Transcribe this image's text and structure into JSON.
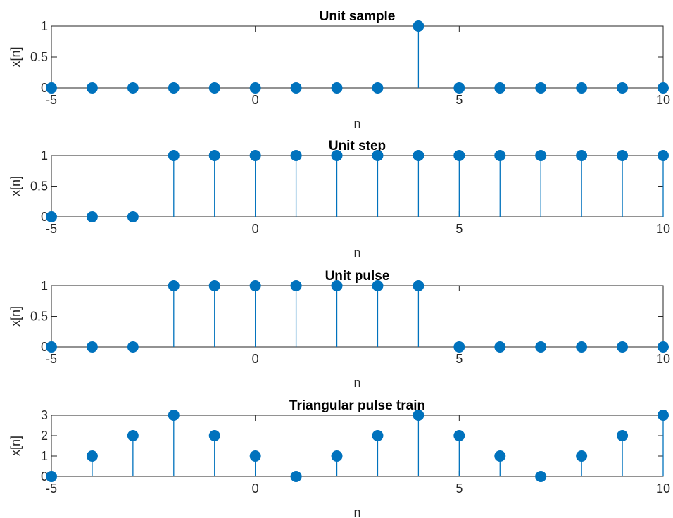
{
  "figure": {
    "stem_color": "#0072BD",
    "axis_color": "#262626",
    "background": "#ffffff"
  },
  "chart_data": [
    {
      "type": "stem",
      "title": "Unit sample",
      "xlabel": "n",
      "ylabel": "x[n]",
      "xlim": [
        -5,
        10
      ],
      "ylim": [
        0,
        1
      ],
      "xticks": [
        "-5",
        "0",
        "5",
        "10"
      ],
      "yticks": [
        "0",
        "0.5",
        "1"
      ],
      "x": [
        -5,
        -4,
        -3,
        -2,
        -1,
        0,
        1,
        2,
        3,
        4,
        5,
        6,
        7,
        8,
        9,
        10
      ],
      "values": [
        0,
        0,
        0,
        0,
        0,
        0,
        0,
        0,
        0,
        1,
        0,
        0,
        0,
        0,
        0,
        0
      ]
    },
    {
      "type": "stem",
      "title": "Unit step",
      "xlabel": "n",
      "ylabel": "x[n]",
      "xlim": [
        -5,
        10
      ],
      "ylim": [
        0,
        1
      ],
      "xticks": [
        "-5",
        "0",
        "5",
        "10"
      ],
      "yticks": [
        "0",
        "0.5",
        "1"
      ],
      "x": [
        -5,
        -4,
        -3,
        -2,
        -1,
        0,
        1,
        2,
        3,
        4,
        5,
        6,
        7,
        8,
        9,
        10
      ],
      "values": [
        0,
        0,
        0,
        1,
        1,
        1,
        1,
        1,
        1,
        1,
        1,
        1,
        1,
        1,
        1,
        1
      ]
    },
    {
      "type": "stem",
      "title": "Unit pulse",
      "xlabel": "n",
      "ylabel": "x[n]",
      "xlim": [
        -5,
        10
      ],
      "ylim": [
        0,
        1
      ],
      "xticks": [
        "-5",
        "0",
        "5",
        "10"
      ],
      "yticks": [
        "0",
        "0.5",
        "1"
      ],
      "x": [
        -5,
        -4,
        -3,
        -2,
        -1,
        0,
        1,
        2,
        3,
        4,
        5,
        6,
        7,
        8,
        9,
        10
      ],
      "values": [
        0,
        0,
        0,
        1,
        1,
        1,
        1,
        1,
        1,
        1,
        0,
        0,
        0,
        0,
        0,
        0
      ]
    },
    {
      "type": "stem",
      "title": "Triangular pulse train",
      "xlabel": "n",
      "ylabel": "x[n]",
      "xlim": [
        -5,
        10
      ],
      "ylim": [
        0,
        3
      ],
      "xticks": [
        "-5",
        "0",
        "5",
        "10"
      ],
      "yticks": [
        "0",
        "1",
        "2",
        "3"
      ],
      "x": [
        -5,
        -4,
        -3,
        -2,
        -1,
        0,
        1,
        2,
        3,
        4,
        5,
        6,
        7,
        8,
        9,
        10
      ],
      "values": [
        0,
        1,
        2,
        3,
        2,
        1,
        0,
        1,
        2,
        3,
        2,
        1,
        0,
        1,
        2,
        3
      ]
    }
  ]
}
